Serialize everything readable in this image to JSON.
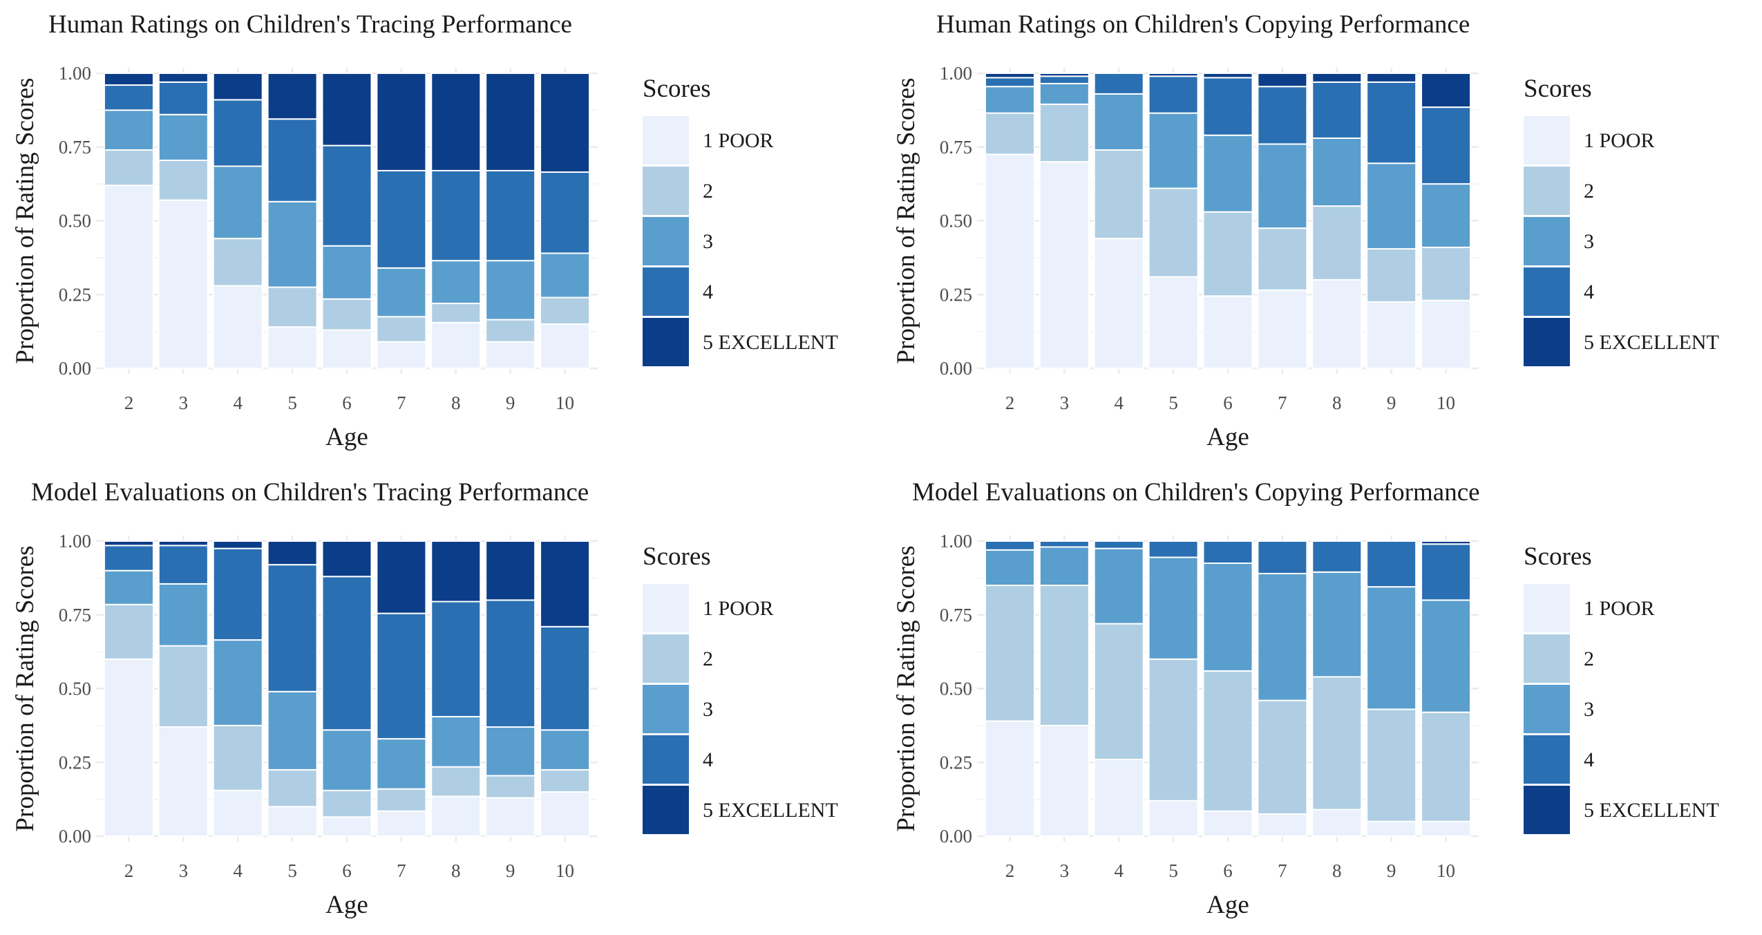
{
  "legend": {
    "title": "Scores",
    "labels": [
      "1 POOR",
      "2",
      "3",
      "4",
      "5 EXCELLENT"
    ],
    "colors": [
      "#EAF1FC",
      "#AFCEE3",
      "#5A9ECE",
      "#2A6FB2",
      "#0C3D88"
    ]
  },
  "chart_data": [
    {
      "type": "bar",
      "stacked": true,
      "title": "Human Ratings on Children's Tracing Performance",
      "xlabel": "Age",
      "ylabel": "Proportion of Rating Scores",
      "ylim": [
        0,
        1
      ],
      "yticks": [
        "0.00",
        "0.25",
        "0.50",
        "0.75",
        "1.00"
      ],
      "categories": [
        "2",
        "3",
        "4",
        "5",
        "6",
        "7",
        "8",
        "9",
        "10"
      ],
      "series": [
        {
          "name": "1 POOR",
          "values": [
            0.62,
            0.57,
            0.28,
            0.14,
            0.13,
            0.09,
            0.155,
            0.09,
            0.15
          ]
        },
        {
          "name": "2",
          "values": [
            0.12,
            0.135,
            0.16,
            0.135,
            0.105,
            0.085,
            0.065,
            0.075,
            0.09
          ]
        },
        {
          "name": "3",
          "values": [
            0.135,
            0.155,
            0.245,
            0.29,
            0.18,
            0.165,
            0.145,
            0.2,
            0.15
          ]
        },
        {
          "name": "4",
          "values": [
            0.085,
            0.11,
            0.225,
            0.28,
            0.34,
            0.33,
            0.305,
            0.305,
            0.275
          ]
        },
        {
          "name": "5 EXCELLENT",
          "values": [
            0.04,
            0.03,
            0.09,
            0.155,
            0.245,
            0.33,
            0.33,
            0.33,
            0.335
          ]
        }
      ]
    },
    {
      "type": "bar",
      "stacked": true,
      "title": "Human Ratings on Children's Copying Performance",
      "xlabel": "Age",
      "ylabel": "Proportion of Rating Scores",
      "ylim": [
        0,
        1
      ],
      "yticks": [
        "0.00",
        "0.25",
        "0.50",
        "0.75",
        "1.00"
      ],
      "categories": [
        "2",
        "3",
        "4",
        "5",
        "6",
        "7",
        "8",
        "9",
        "10"
      ],
      "series": [
        {
          "name": "1 POOR",
          "values": [
            0.725,
            0.7,
            0.44,
            0.31,
            0.245,
            0.265,
            0.3,
            0.225,
            0.23
          ]
        },
        {
          "name": "2",
          "values": [
            0.14,
            0.195,
            0.3,
            0.3,
            0.285,
            0.21,
            0.25,
            0.18,
            0.18
          ]
        },
        {
          "name": "3",
          "values": [
            0.09,
            0.07,
            0.19,
            0.255,
            0.26,
            0.285,
            0.23,
            0.29,
            0.215
          ]
        },
        {
          "name": "4",
          "values": [
            0.03,
            0.025,
            0.07,
            0.125,
            0.195,
            0.195,
            0.19,
            0.275,
            0.26
          ]
        },
        {
          "name": "5 EXCELLENT",
          "values": [
            0.015,
            0.01,
            0.0,
            0.01,
            0.015,
            0.045,
            0.03,
            0.03,
            0.115
          ]
        }
      ]
    },
    {
      "type": "bar",
      "stacked": true,
      "title": "Model Evaluations on Children's Tracing Performance",
      "xlabel": "Age",
      "ylabel": "Proportion of Rating Scores",
      "ylim": [
        0,
        1
      ],
      "yticks": [
        "0.00",
        "0.25",
        "0.50",
        "0.75",
        "1.00"
      ],
      "categories": [
        "2",
        "3",
        "4",
        "5",
        "6",
        "7",
        "8",
        "9",
        "10"
      ],
      "series": [
        {
          "name": "1 POOR",
          "values": [
            0.6,
            0.37,
            0.155,
            0.1,
            0.065,
            0.085,
            0.135,
            0.13,
            0.15
          ]
        },
        {
          "name": "2",
          "values": [
            0.185,
            0.275,
            0.22,
            0.125,
            0.09,
            0.075,
            0.1,
            0.075,
            0.075
          ]
        },
        {
          "name": "3",
          "values": [
            0.115,
            0.21,
            0.29,
            0.265,
            0.205,
            0.17,
            0.17,
            0.165,
            0.135
          ]
        },
        {
          "name": "4",
          "values": [
            0.085,
            0.13,
            0.31,
            0.43,
            0.52,
            0.425,
            0.39,
            0.43,
            0.35
          ]
        },
        {
          "name": "5 EXCELLENT",
          "values": [
            0.015,
            0.015,
            0.025,
            0.08,
            0.12,
            0.245,
            0.205,
            0.2,
            0.29
          ]
        }
      ]
    },
    {
      "type": "bar",
      "stacked": true,
      "title": "Model Evaluations on Children's Copying Performance",
      "xlabel": "Age",
      "ylabel": "Proportion of Rating Scores",
      "ylim": [
        0,
        1
      ],
      "yticks": [
        "0.00",
        "0.25",
        "0.50",
        "0.75",
        "1.00"
      ],
      "categories": [
        "2",
        "3",
        "4",
        "5",
        "6",
        "7",
        "8",
        "9",
        "10"
      ],
      "series": [
        {
          "name": "1 POOR",
          "values": [
            0.39,
            0.375,
            0.26,
            0.12,
            0.085,
            0.075,
            0.09,
            0.05,
            0.05
          ]
        },
        {
          "name": "2",
          "values": [
            0.46,
            0.475,
            0.46,
            0.48,
            0.475,
            0.385,
            0.45,
            0.38,
            0.37
          ]
        },
        {
          "name": "3",
          "values": [
            0.12,
            0.13,
            0.255,
            0.345,
            0.365,
            0.43,
            0.355,
            0.415,
            0.38
          ]
        },
        {
          "name": "4",
          "values": [
            0.03,
            0.02,
            0.025,
            0.055,
            0.075,
            0.11,
            0.105,
            0.155,
            0.19
          ]
        },
        {
          "name": "5 EXCELLENT",
          "values": [
            0.0,
            0.0,
            0.0,
            0.0,
            0.0,
            0.0,
            0.0,
            0.0,
            0.01
          ]
        }
      ]
    }
  ]
}
